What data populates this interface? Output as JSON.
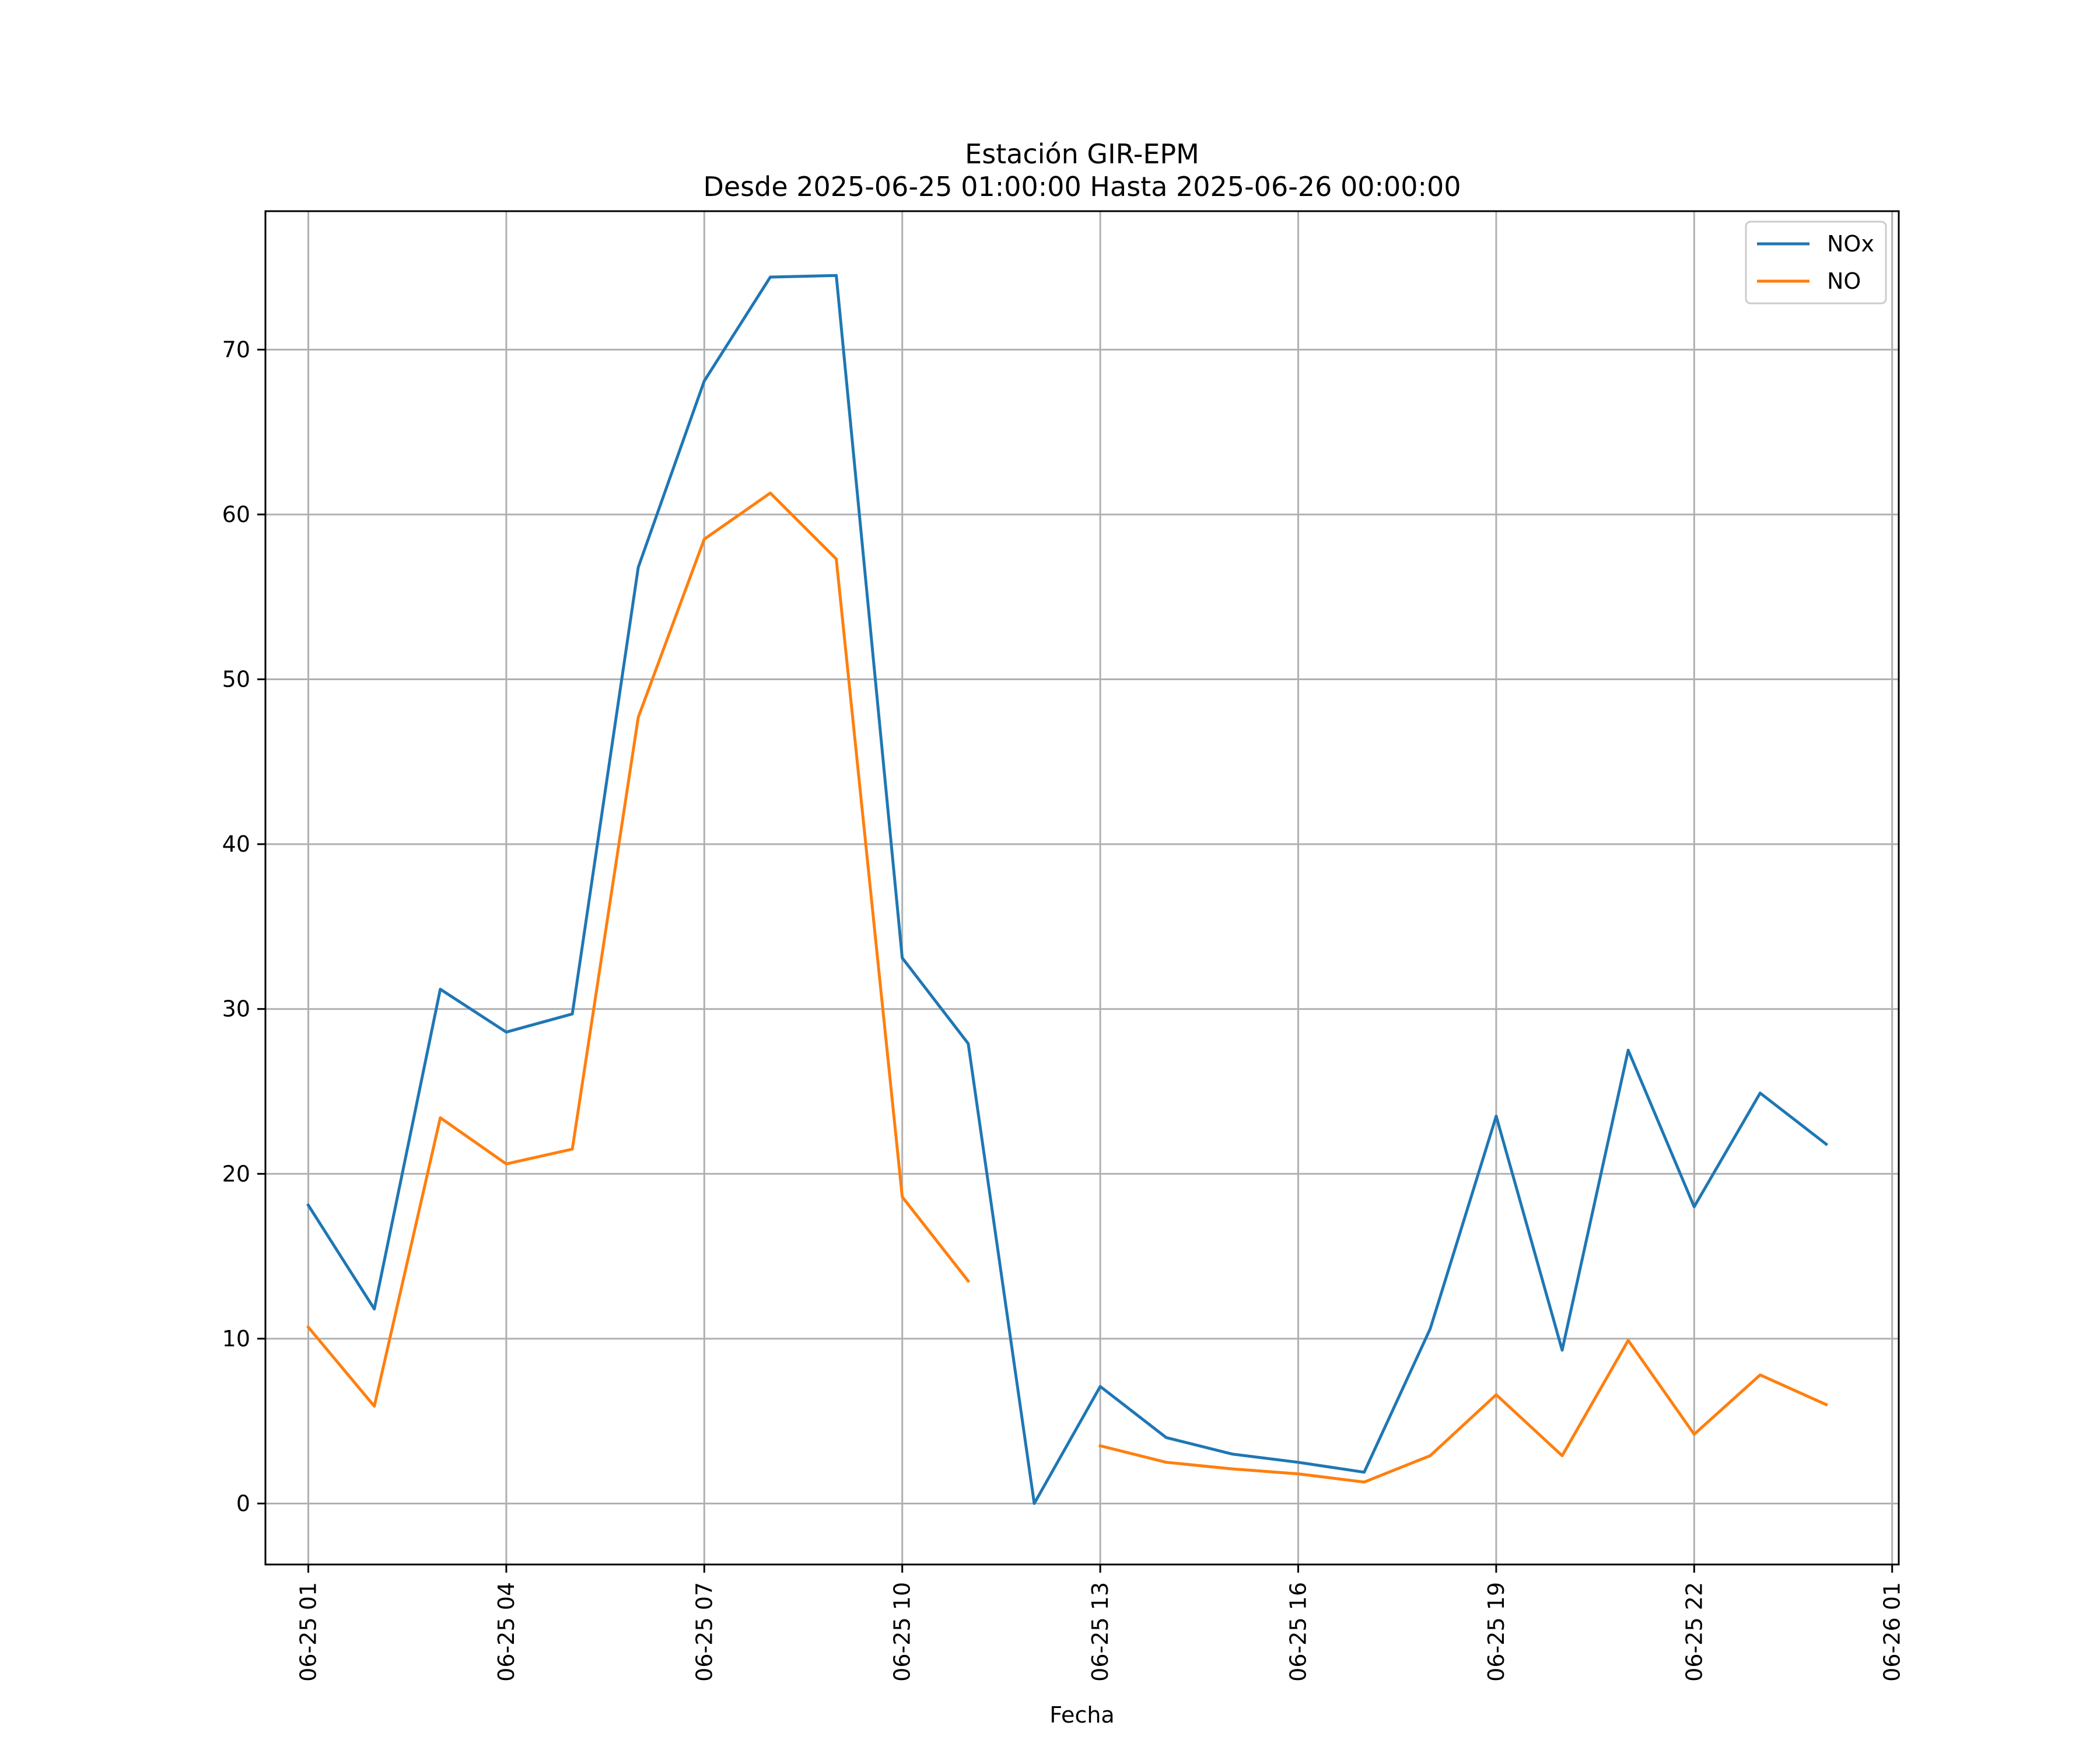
{
  "chart_data": {
    "type": "line",
    "title": "Estación GIR-EPM",
    "subtitle": "Desde 2025-06-25 01:00:00 Hasta 2025-06-26 00:00:00",
    "xlabel": "Fecha",
    "ylabel": "",
    "x": [
      "06-25 01",
      "06-25 02",
      "06-25 03",
      "06-25 04",
      "06-25 05",
      "06-25 06",
      "06-25 07",
      "06-25 08",
      "06-25 09",
      "06-25 10",
      "06-25 11",
      "06-25 12",
      "06-25 13",
      "06-25 14",
      "06-25 15",
      "06-25 16",
      "06-25 17",
      "06-25 18",
      "06-25 19",
      "06-25 20",
      "06-25 21",
      "06-25 22",
      "06-25 23",
      "06-26 00"
    ],
    "x_ticks": [
      "06-25 01",
      "06-25 04",
      "06-25 07",
      "06-25 10",
      "06-25 13",
      "06-25 16",
      "06-25 19",
      "06-25 22",
      "06-26 01"
    ],
    "xlim": [
      "06-25 00",
      "06-26 01"
    ],
    "y_ticks": [
      0,
      10,
      20,
      30,
      40,
      50,
      60,
      70
    ],
    "ylim": [
      -3.7,
      78.4
    ],
    "grid": true,
    "legend_position": "top-right",
    "series": [
      {
        "name": "NOx",
        "color": "#1f77b4",
        "values": [
          18.1,
          11.8,
          31.2,
          28.6,
          29.7,
          56.8,
          68.1,
          74.4,
          74.5,
          33.1,
          27.9,
          0.0,
          7.1,
          4.0,
          3.0,
          2.5,
          1.9,
          10.6,
          23.5,
          9.3,
          27.5,
          18.0,
          24.9,
          21.8
        ]
      },
      {
        "name": "NO",
        "color": "#ff7f0e",
        "values": [
          10.7,
          5.9,
          23.4,
          20.6,
          21.5,
          47.7,
          58.5,
          61.3,
          57.3,
          18.6,
          13.5,
          null,
          3.5,
          2.5,
          2.1,
          1.8,
          1.3,
          2.9,
          6.6,
          2.9,
          9.9,
          4.2,
          7.8,
          6.0
        ]
      }
    ]
  }
}
